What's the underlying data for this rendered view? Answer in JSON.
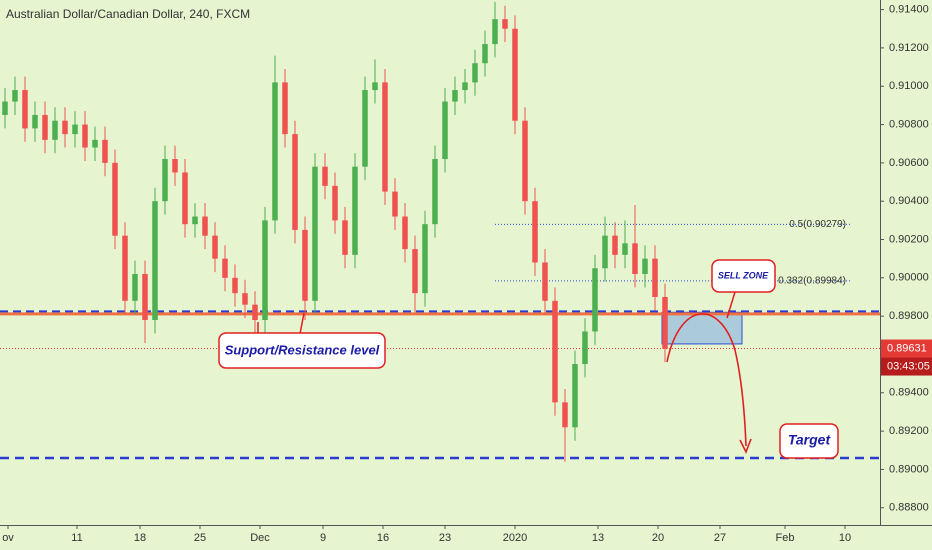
{
  "chart_data": {
    "type": "candlestick",
    "title": "Australian Dollar/Canadian Dollar, 240, FXCM",
    "x": [
      0,
      1,
      2,
      3,
      4,
      5,
      6,
      7,
      8,
      9,
      10,
      11,
      12,
      13,
      14,
      15,
      16,
      17,
      18,
      19,
      20,
      21,
      22,
      23,
      24,
      25,
      26,
      27,
      28,
      29,
      30,
      31,
      32,
      33,
      34,
      35,
      36,
      37,
      38,
      39,
      40,
      41,
      42,
      43,
      44,
      45,
      46,
      47,
      48,
      49,
      50,
      51,
      52,
      53,
      54,
      55,
      56,
      57,
      58,
      59,
      60,
      61,
      62,
      63,
      64,
      65,
      66
    ],
    "open": [
      0.9085,
      0.9092,
      0.9098,
      0.9078,
      0.9085,
      0.9072,
      0.9082,
      0.9075,
      0.908,
      0.9068,
      0.9072,
      0.906,
      0.9022,
      0.8988,
      0.9002,
      0.8978,
      0.904,
      0.9062,
      0.9055,
      0.9028,
      0.9032,
      0.9022,
      0.901,
      0.9,
      0.8992,
      0.8986,
      0.8978,
      0.903,
      0.9102,
      0.9075,
      0.9025,
      0.8988,
      0.9058,
      0.9048,
      0.903,
      0.9012,
      0.9058,
      0.9098,
      0.9102,
      0.9045,
      0.9032,
      0.9015,
      0.8992,
      0.9028,
      0.9062,
      0.9092,
      0.9098,
      0.9102,
      0.9112,
      0.9122,
      0.9135,
      0.913,
      0.9082,
      0.904,
      0.9008,
      0.8988,
      0.8935,
      0.8922,
      0.8955,
      0.8972,
      0.9005,
      0.9022,
      0.9012,
      0.9018,
      0.9002,
      0.901,
      0.899
    ],
    "high": [
      0.9099,
      0.9105,
      0.9105,
      0.9092,
      0.9092,
      0.9089,
      0.9089,
      0.9087,
      0.9087,
      0.9079,
      0.9079,
      0.9067,
      0.9029,
      0.9009,
      0.9009,
      0.9047,
      0.9069,
      0.9069,
      0.9062,
      0.9039,
      0.9039,
      0.9029,
      0.9017,
      0.9007,
      0.8999,
      0.8993,
      0.9037,
      0.9116,
      0.9109,
      0.9082,
      0.9032,
      0.9065,
      0.9065,
      0.9055,
      0.9037,
      0.9065,
      0.9105,
      0.9114,
      0.9109,
      0.9052,
      0.9039,
      0.9022,
      0.9035,
      0.9069,
      0.9099,
      0.9105,
      0.9109,
      0.9119,
      0.9129,
      0.9144,
      0.9142,
      0.9137,
      0.9089,
      0.9047,
      0.9015,
      0.8995,
      0.8942,
      0.8962,
      0.8979,
      0.9012,
      0.9032,
      0.9029,
      0.903,
      0.9038,
      0.9017,
      0.9017,
      0.8997
    ],
    "low": [
      0.9078,
      0.9085,
      0.9071,
      0.9071,
      0.9065,
      0.9065,
      0.9068,
      0.9068,
      0.9061,
      0.9061,
      0.9053,
      0.9015,
      0.8981,
      0.8981,
      0.8966,
      0.8971,
      0.9033,
      0.9048,
      0.9021,
      0.9021,
      0.9015,
      0.9003,
      0.8993,
      0.8985,
      0.8979,
      0.8971,
      0.8971,
      0.9023,
      0.9068,
      0.9018,
      0.8978,
      0.8981,
      0.9041,
      0.9023,
      0.9005,
      0.9005,
      0.9051,
      0.9091,
      0.9038,
      0.9025,
      0.9008,
      0.8982,
      0.8985,
      0.9021,
      0.9055,
      0.9085,
      0.9091,
      0.9095,
      0.9105,
      0.9115,
      0.9123,
      0.9075,
      0.9033,
      0.9001,
      0.8981,
      0.8928,
      0.8904,
      0.8915,
      0.8948,
      0.8965,
      0.8998,
      0.9005,
      0.9005,
      0.8995,
      0.8995,
      0.8983,
      0.8956
    ],
    "close": [
      0.9092,
      0.9098,
      0.9078,
      0.9085,
      0.9072,
      0.9082,
      0.9075,
      0.908,
      0.9068,
      0.9072,
      0.906,
      0.9022,
      0.8988,
      0.9002,
      0.8978,
      0.904,
      0.9062,
      0.9055,
      0.9028,
      0.9032,
      0.9022,
      0.901,
      0.9,
      0.8992,
      0.8986,
      0.8978,
      0.903,
      0.9102,
      0.9075,
      0.9025,
      0.8988,
      0.9058,
      0.9048,
      0.903,
      0.9012,
      0.9058,
      0.9098,
      0.9102,
      0.9045,
      0.9032,
      0.9015,
      0.8992,
      0.9028,
      0.9062,
      0.9092,
      0.9098,
      0.9102,
      0.9112,
      0.9122,
      0.9135,
      0.913,
      0.9082,
      0.904,
      0.9008,
      0.8988,
      0.8935,
      0.8922,
      0.8955,
      0.8972,
      0.9005,
      0.9022,
      0.9012,
      0.9018,
      0.9002,
      0.901,
      0.899,
      0.8963
    ],
    "up_color": "#4caf50",
    "down_color": "#ef5350",
    "xlim": [
      -0.5,
      87.5
    ],
    "ylim": [
      0.8871,
      0.9145
    ],
    "xticks": [
      {
        "value": 0.3,
        "label": "ov"
      },
      {
        "value": 7.2,
        "label": "11"
      },
      {
        "value": 13.5,
        "label": "18"
      },
      {
        "value": 19.5,
        "label": "25"
      },
      {
        "value": 25.5,
        "label": "Dec"
      },
      {
        "value": 31.8,
        "label": "9"
      },
      {
        "value": 37.8,
        "label": "16"
      },
      {
        "value": 44,
        "label": "23"
      },
      {
        "value": 51,
        "label": "2020"
      },
      {
        "value": 59.3,
        "label": "13"
      },
      {
        "value": 65.3,
        "label": "20"
      },
      {
        "value": 71.5,
        "label": "27"
      },
      {
        "value": 78,
        "label": "Feb"
      },
      {
        "value": 84,
        "label": "10"
      }
    ],
    "yticks": [
      {
        "value": 0.914,
        "label": "0.91400"
      },
      {
        "value": 0.912,
        "label": "0.91200"
      },
      {
        "value": 0.91,
        "label": "0.91000"
      },
      {
        "value": 0.908,
        "label": "0.90800"
      },
      {
        "value": 0.906,
        "label": "0.90600"
      },
      {
        "value": 0.904,
        "label": "0.90400"
      },
      {
        "value": 0.902,
        "label": "0.90200"
      },
      {
        "value": 0.9,
        "label": "0.90000"
      },
      {
        "value": 0.898,
        "label": "0.89800"
      },
      {
        "value": 0.894,
        "label": "0.89400"
      },
      {
        "value": 0.892,
        "label": "0.89200"
      },
      {
        "value": 0.89,
        "label": "0.89000"
      },
      {
        "value": 0.888,
        "label": "0.88800"
      }
    ],
    "support_level": 0.8982,
    "support_label": "Support/Resistance level",
    "target_level": 0.8906,
    "target_label": "Target",
    "last_price": 0.89631,
    "countdown": "03:43:05",
    "fib_levels": [
      {
        "value": 0.90279,
        "label": "0.5(0.90279)"
      },
      {
        "value": 0.89984,
        "label": "0.382(0.89984)"
      }
    ],
    "fib_x": [
      49,
      84.5
    ],
    "sell_zone": {
      "label": "SELL ZONE",
      "x": [
        65.7,
        73.7
      ],
      "y": [
        0.89655,
        0.8982
      ]
    }
  }
}
